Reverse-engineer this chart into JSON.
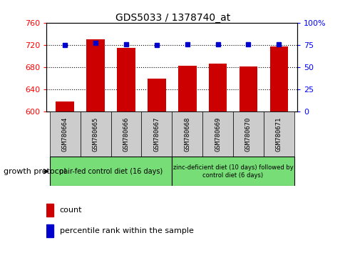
{
  "title": "GDS5033 / 1378740_at",
  "samples": [
    "GSM780664",
    "GSM780665",
    "GSM780666",
    "GSM780667",
    "GSM780668",
    "GSM780669",
    "GSM780670",
    "GSM780671"
  ],
  "counts": [
    618,
    730,
    714,
    659,
    682,
    686,
    681,
    717
  ],
  "percentiles": [
    75,
    77,
    76,
    75,
    76,
    76,
    76,
    76
  ],
  "ylim_left": [
    600,
    760
  ],
  "ylim_right": [
    0,
    100
  ],
  "yticks_left": [
    600,
    640,
    680,
    720,
    760
  ],
  "yticks_right": [
    0,
    25,
    50,
    75,
    100
  ],
  "bar_color": "#cc0000",
  "dot_color": "#0000cc",
  "grid_color": "#000000",
  "protocol_labels": [
    "pair-fed control diet (16 days)",
    "zinc-deficient diet (10 days) followed by\ncontrol diet (6 days)"
  ],
  "protocol_group1_count": 4,
  "protocol_group2_count": 4,
  "tick_label_bg": "#cccccc",
  "protocol_bg": "#77dd77",
  "legend_count_color": "#cc0000",
  "legend_pct_color": "#0000cc",
  "growth_protocol_label": "growth protocol"
}
